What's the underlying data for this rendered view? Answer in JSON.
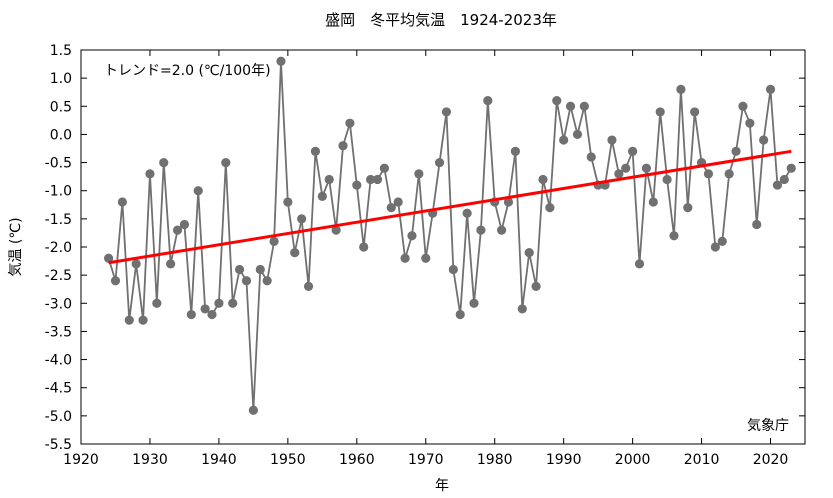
{
  "chart_data": {
    "type": "line",
    "title": "盛岡　冬平均気温　1924-2023年",
    "xlabel": "年",
    "ylabel": "気温 (℃)",
    "annotation_trend": "トレンド=2.0 (℃/100年)",
    "credit": "気象庁",
    "xlim": [
      1920,
      2025
    ],
    "ylim": [
      -5.5,
      1.5
    ],
    "x_ticks": [
      1920,
      1930,
      1940,
      1950,
      1960,
      1970,
      1980,
      1990,
      2000,
      2010,
      2020
    ],
    "y_ticks": [
      1.5,
      1.0,
      0.5,
      0.0,
      -0.5,
      -1.0,
      -1.5,
      -2.0,
      -2.5,
      -3.0,
      -3.5,
      -4.0,
      -4.5,
      -5.0,
      -5.5
    ],
    "grid": false,
    "series": [
      {
        "x": [
          1924,
          1925,
          1926,
          1927,
          1928,
          1929,
          1930,
          1931,
          1932,
          1933,
          1934,
          1935,
          1936,
          1937,
          1938,
          1939,
          1940,
          1941,
          1942,
          1943,
          1944,
          1945,
          1946,
          1947,
          1948,
          1949,
          1950,
          1951,
          1952,
          1953,
          1954,
          1955,
          1956,
          1957,
          1958,
          1959,
          1960,
          1961,
          1962,
          1963,
          1964,
          1965,
          1966,
          1967,
          1968,
          1969,
          1970,
          1971,
          1972,
          1973,
          1974,
          1975,
          1976,
          1977,
          1978,
          1979,
          1980,
          1981,
          1982,
          1983,
          1984,
          1985,
          1986,
          1987,
          1988,
          1989,
          1990,
          1991,
          1992,
          1993,
          1994,
          1995,
          1996,
          1997,
          1998,
          1999,
          2000,
          2001,
          2002,
          2003,
          2004,
          2005,
          2006,
          2007,
          2008,
          2009,
          2010,
          2011,
          2012,
          2013,
          2014,
          2015,
          2016,
          2017,
          2018,
          2019,
          2020,
          2021,
          2022,
          2023
        ],
        "values": [
          -2.2,
          -2.6,
          -1.2,
          -3.3,
          -2.3,
          -3.3,
          -0.7,
          -3.0,
          -0.5,
          -2.3,
          -1.7,
          -1.6,
          -3.2,
          -1.0,
          -3.1,
          -3.2,
          -3.0,
          -0.5,
          -3.0,
          -2.4,
          -2.6,
          -4.9,
          -2.4,
          -2.6,
          -1.9,
          1.3,
          -1.2,
          -2.1,
          -1.5,
          -2.7,
          -0.3,
          -1.1,
          -0.8,
          -1.7,
          -0.2,
          0.2,
          -0.9,
          -2.0,
          -0.8,
          -0.8,
          -0.6,
          -1.3,
          -1.2,
          -2.2,
          -1.8,
          -0.7,
          -2.2,
          -1.4,
          -0.5,
          0.4,
          -2.4,
          -3.2,
          -1.4,
          -3.0,
          -1.7,
          0.6,
          -1.2,
          -1.7,
          -1.2,
          -0.3,
          -3.1,
          -2.1,
          -2.7,
          -0.8,
          -1.3,
          0.6,
          -0.1,
          0.5,
          0.0,
          0.5,
          -0.4,
          -0.9,
          -0.9,
          -0.1,
          -0.7,
          -0.6,
          -0.3,
          -2.3,
          -0.6,
          -1.2,
          0.4,
          -0.8,
          -1.8,
          0.8,
          -1.3,
          0.4,
          -0.5,
          -0.7,
          -2.0,
          -1.9,
          -0.7,
          -0.3,
          0.5,
          0.2,
          -1.6,
          -0.1,
          0.8,
          -0.9,
          -0.8,
          -0.6
        ],
        "color": "#707070",
        "marker_color": "#707070"
      }
    ],
    "trend": {
      "x": [
        1924,
        2023
      ],
      "values": [
        -2.28,
        -0.3
      ],
      "color": "#ff0000"
    }
  }
}
